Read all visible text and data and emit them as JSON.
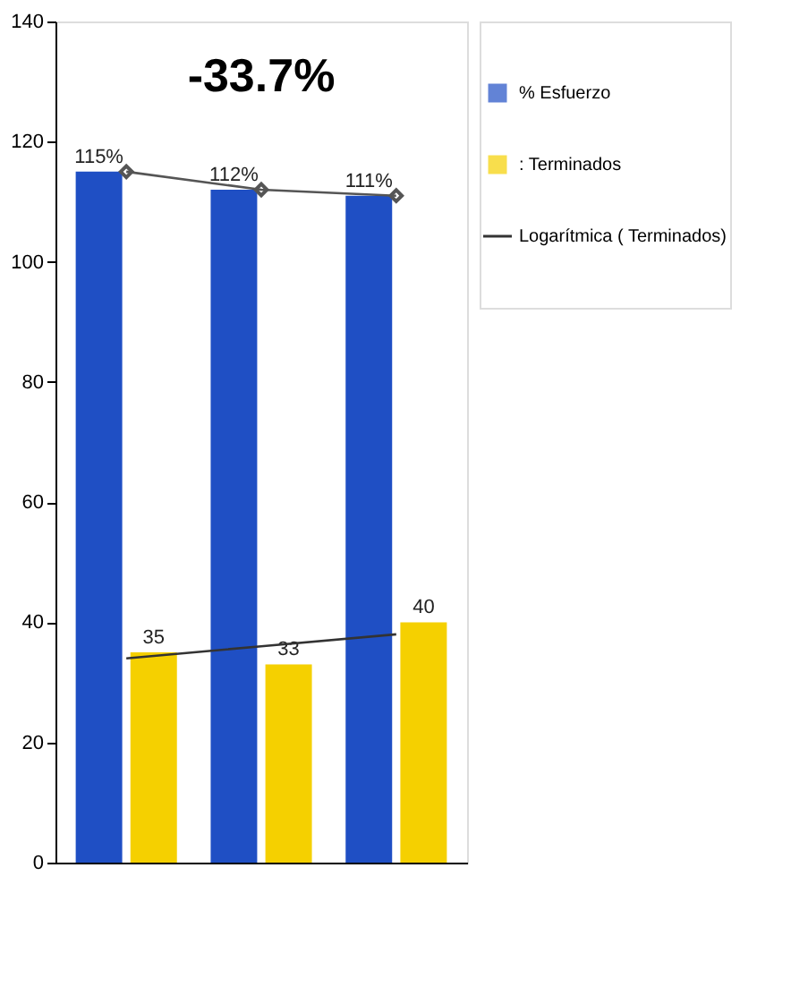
{
  "chart_data": {
    "type": "bar",
    "title": "-33.7%",
    "categories": [
      null,
      null,
      null
    ],
    "series": [
      {
        "name": "% Esfuerzo",
        "color": "#1f4fc4",
        "values": [
          115,
          112,
          111
        ],
        "value_labels": [
          "115%",
          "112%",
          "111%"
        ]
      },
      {
        "name": ": Terminados",
        "color": "#f5d000",
        "values": [
          35,
          33,
          40
        ],
        "value_labels": [
          "35",
          "33",
          "40"
        ]
      },
      {
        "type": "line",
        "color": "#555555",
        "values": [
          115,
          112,
          111
        ],
        "marker": "diamond"
      },
      {
        "name": "Logarítmica ( Terminados)",
        "type": "line",
        "color": "#333333",
        "values": [
          34,
          36,
          38
        ]
      }
    ],
    "ylim": [
      0,
      140
    ],
    "yticks": [
      0,
      20,
      40,
      60,
      80,
      100,
      120,
      140
    ],
    "grid": false,
    "legend": "right"
  }
}
